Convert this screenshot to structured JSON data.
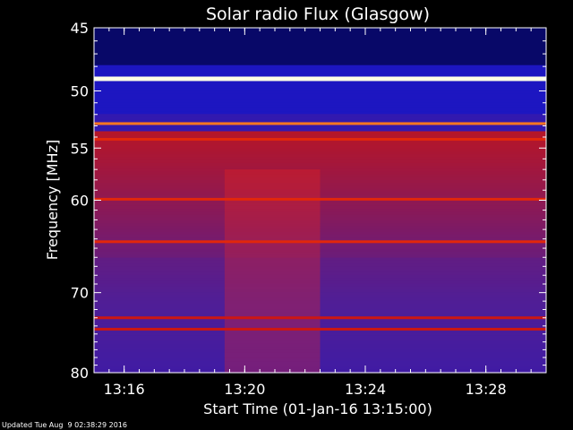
{
  "chart_data": {
    "type": "heatmap",
    "title": "Solar radio Flux (Glasgow)",
    "xlabel": "Start Time (01-Jan-16 13:15:00)",
    "ylabel": "Frequency [MHz]",
    "x_ticks": [
      "13:16",
      "13:20",
      "13:24",
      "13:28"
    ],
    "y_ticks": [
      45,
      50,
      55,
      60,
      70,
      80
    ],
    "x_range": [
      "13:15:00",
      "13:30:00"
    ],
    "y_range": [
      45,
      80
    ],
    "y_scale": "log",
    "colormap": "black-blue-red-yellow-white",
    "bright_bands_mhz": [
      {
        "f": 49.0,
        "level": "saturated"
      },
      {
        "f": 52.8,
        "level": "high"
      },
      {
        "f": 54.2,
        "level": "medium"
      },
      {
        "f": 59.9,
        "level": "medium"
      },
      {
        "f": 64.3,
        "level": "medium"
      },
      {
        "f": 73.0,
        "level": "low"
      },
      {
        "f": 74.4,
        "level": "low"
      }
    ],
    "enhanced_interval": {
      "start": "13:19:20",
      "end": "13:22:30",
      "band_mhz": [
        57,
        80
      ]
    },
    "colors": {
      "background": "#000000",
      "axis": "#ffffff",
      "text": "#ffffff"
    }
  },
  "footer": {
    "updated": "Updated Tue Aug  9 02:38:29 2016"
  }
}
